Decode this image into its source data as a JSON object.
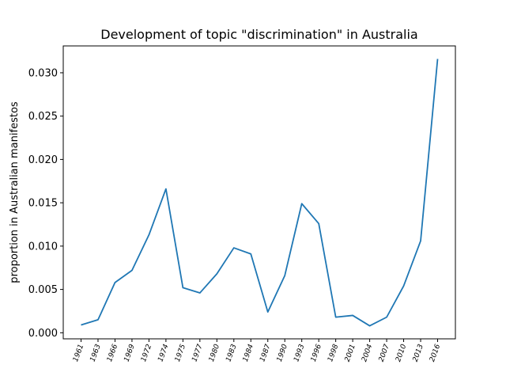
{
  "chart_data": {
    "type": "line",
    "title": "Development of topic \"discrimination\" in Australia",
    "xlabel": "",
    "ylabel": "proportion in Australian manifestos",
    "categories": [
      "1961",
      "1963",
      "1966",
      "1969",
      "1972",
      "1974",
      "1975",
      "1977",
      "1980",
      "1983",
      "1984",
      "1987",
      "1990",
      "1993",
      "1996",
      "1998",
      "2001",
      "2004",
      "2007",
      "2010",
      "2013",
      "2016"
    ],
    "series": [
      {
        "values": [
          0.0009,
          0.0015,
          0.0058,
          0.0072,
          0.0113,
          0.0166,
          0.0052,
          0.0046,
          0.0068,
          0.0098,
          0.0091,
          0.0024,
          0.0066,
          0.0149,
          0.0126,
          0.0018,
          0.002,
          0.0008,
          0.0018,
          0.0054,
          0.0106,
          0.0316
        ],
        "color": "#1f77b4"
      }
    ],
    "yticks": [
      "0.000",
      "0.005",
      "0.010",
      "0.015",
      "0.020",
      "0.025",
      "0.030"
    ],
    "ylim": [
      -0.0007,
      0.0331
    ],
    "grid": false,
    "legend": "none"
  }
}
